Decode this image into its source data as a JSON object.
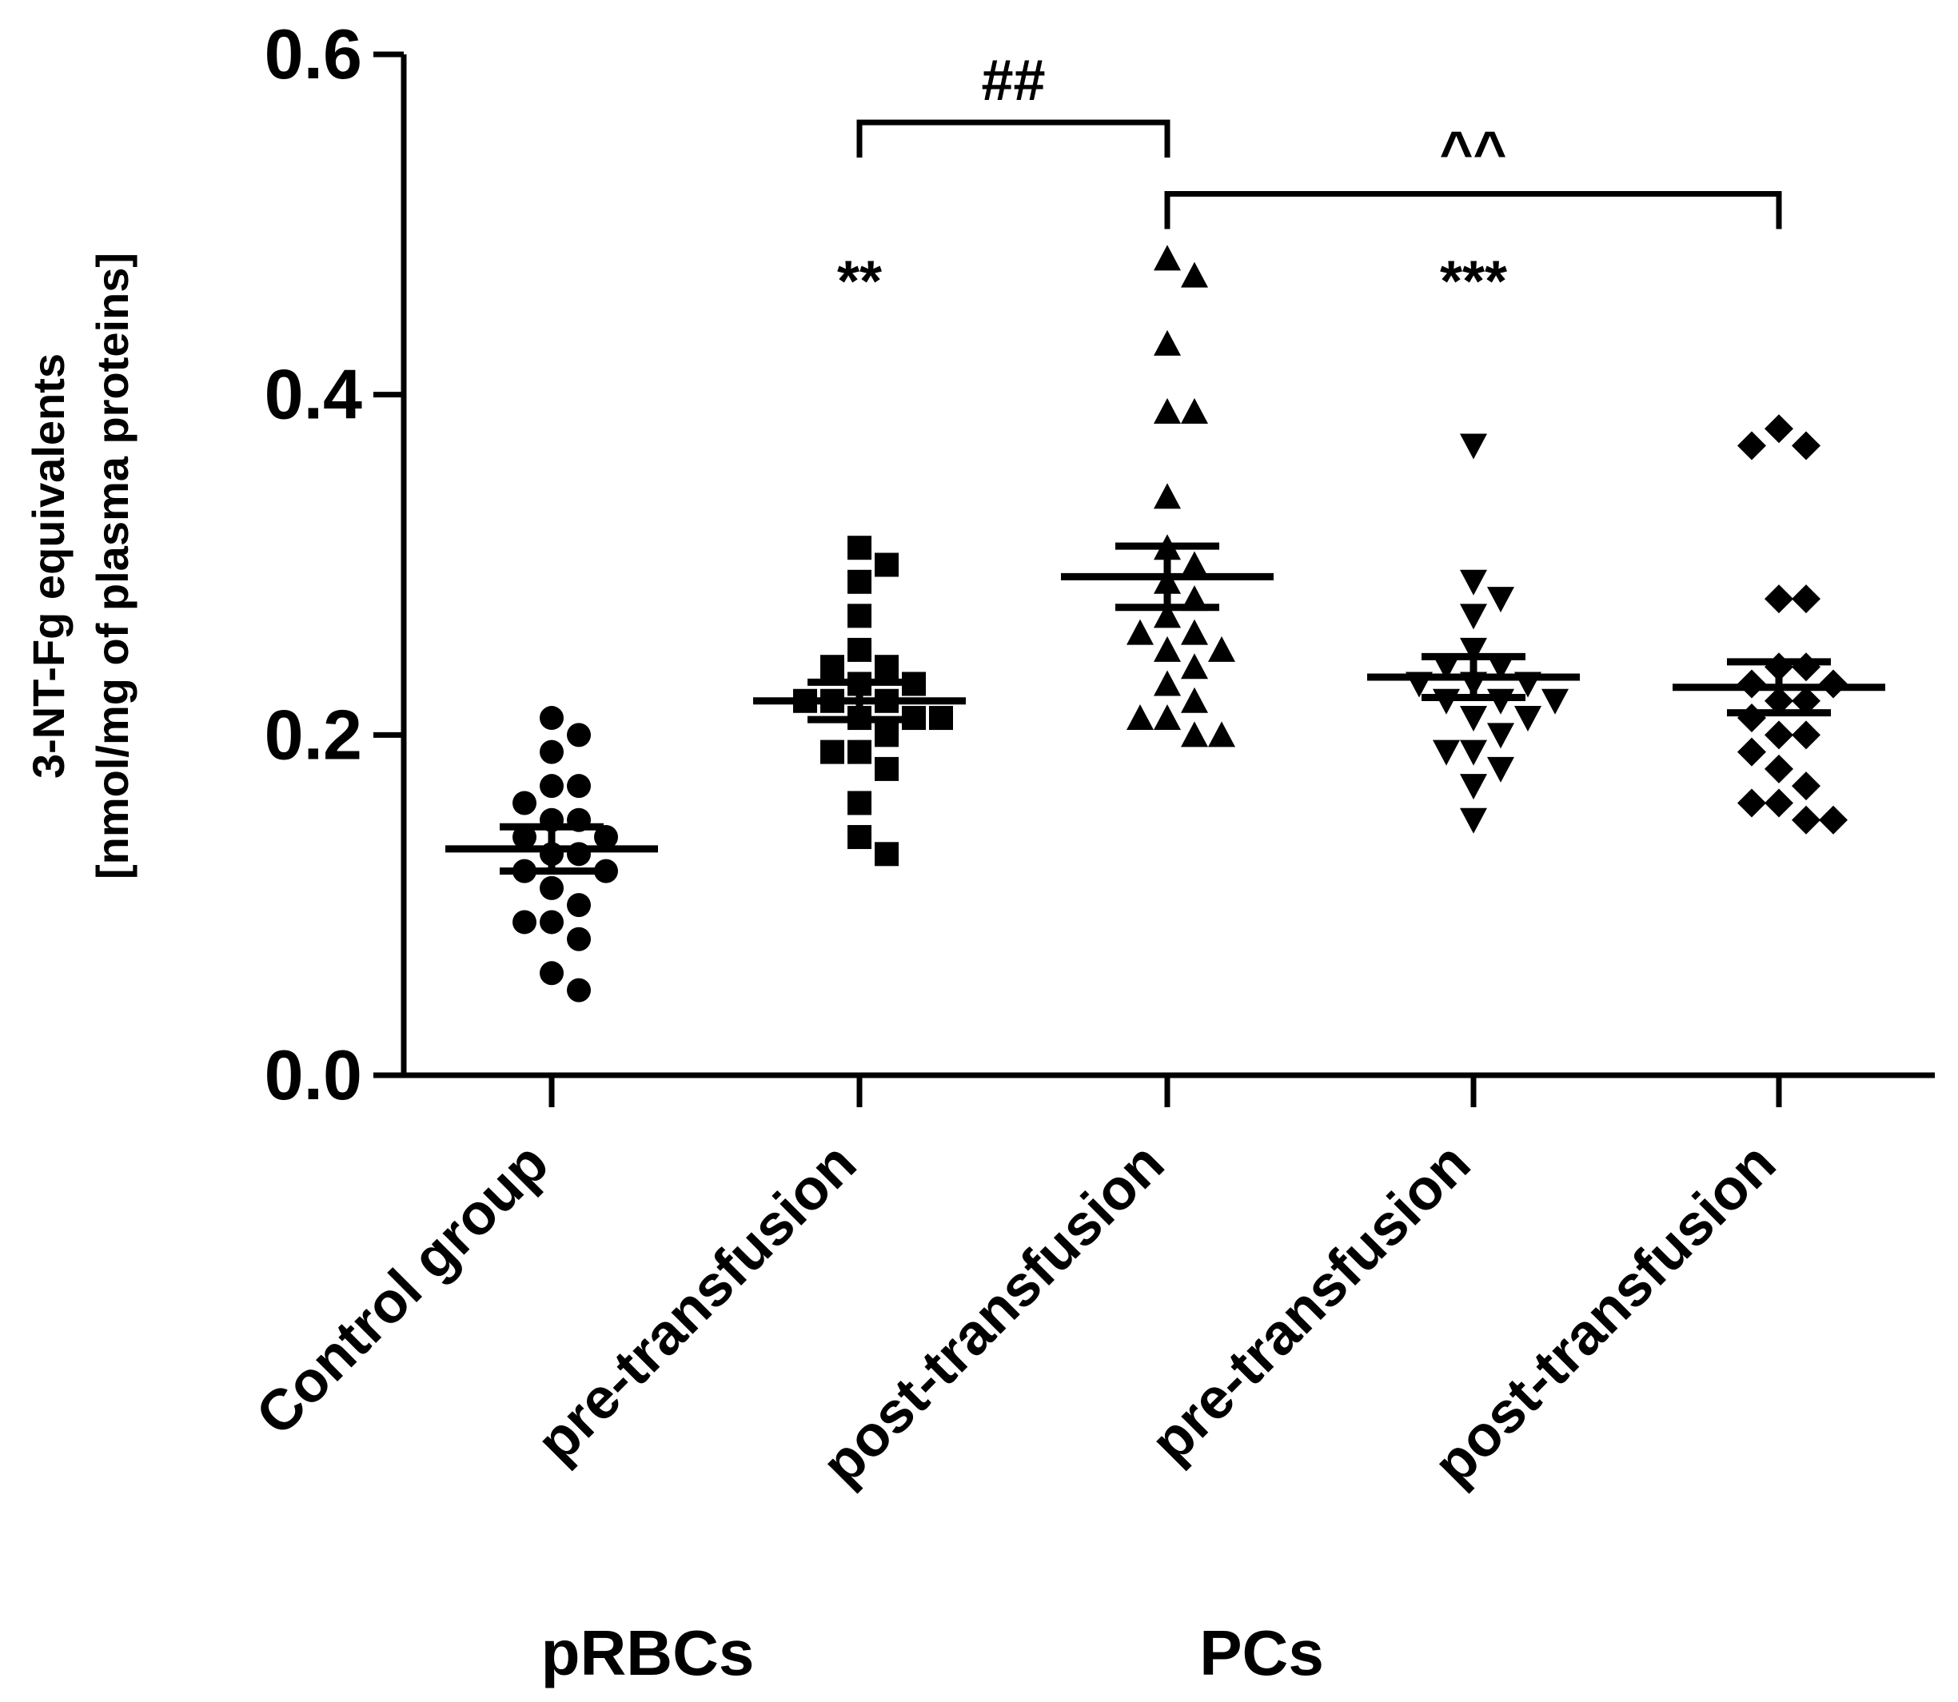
{
  "chart_data": {
    "type": "scatter",
    "title": "",
    "ylabel_line1": "3-NT-Fg equivalents",
    "ylabel_line2": "[nmol/mg of plasma proteins]",
    "xlabel": "",
    "ylim": [
      0.0,
      0.6
    ],
    "yticks": [
      0.0,
      0.2,
      0.4,
      0.6
    ],
    "ytick_labels": [
      "0.0",
      "0.2",
      "0.4",
      "0.6"
    ],
    "categories": [
      "Control group",
      "pre-transfusion",
      "post-transfusion",
      "pre-transfusion",
      "post-transfusion"
    ],
    "group_labels": [
      {
        "label": "pRBCs",
        "center_category": 1
      },
      {
        "label": "PCs",
        "center_category": 3
      }
    ],
    "series": [
      {
        "name": "Control group",
        "marker": "circle",
        "mean": 0.133,
        "sem": 0.013,
        "values": [
          0.21,
          0.2,
          0.19,
          0.17,
          0.17,
          0.16,
          0.15,
          0.15,
          0.14,
          0.14,
          0.13,
          0.13,
          0.12,
          0.12,
          0.11,
          0.1,
          0.09,
          0.09,
          0.08,
          0.06,
          0.05
        ]
      },
      {
        "name": "pRBCs pre-transfusion",
        "marker": "square",
        "mean": 0.22,
        "sem": 0.011,
        "values": [
          0.31,
          0.3,
          0.29,
          0.27,
          0.25,
          0.24,
          0.24,
          0.23,
          0.23,
          0.22,
          0.22,
          0.22,
          0.21,
          0.21,
          0.21,
          0.2,
          0.19,
          0.19,
          0.18,
          0.16,
          0.14,
          0.13
        ]
      },
      {
        "name": "pRBCs post-transfusion",
        "marker": "triangle-up",
        "mean": 0.293,
        "sem": 0.018,
        "values": [
          0.48,
          0.47,
          0.43,
          0.39,
          0.39,
          0.34,
          0.31,
          0.3,
          0.29,
          0.28,
          0.27,
          0.26,
          0.26,
          0.25,
          0.25,
          0.24,
          0.23,
          0.22,
          0.21,
          0.21,
          0.2,
          0.2
        ]
      },
      {
        "name": "PCs pre-transfusion",
        "marker": "triangle-down",
        "mean": 0.234,
        "sem": 0.012,
        "values": [
          0.37,
          0.29,
          0.28,
          0.27,
          0.25,
          0.24,
          0.24,
          0.23,
          0.23,
          0.23,
          0.22,
          0.22,
          0.22,
          0.21,
          0.21,
          0.2,
          0.19,
          0.19,
          0.18,
          0.17,
          0.15
        ]
      },
      {
        "name": "PCs post-transfusion",
        "marker": "diamond",
        "mean": 0.228,
        "sem": 0.015,
        "values": [
          0.38,
          0.37,
          0.37,
          0.28,
          0.28,
          0.24,
          0.24,
          0.23,
          0.23,
          0.22,
          0.22,
          0.21,
          0.2,
          0.2,
          0.19,
          0.18,
          0.17,
          0.16,
          0.16,
          0.15,
          0.15
        ]
      }
    ],
    "annotations": [
      {
        "text": "**",
        "category": 1,
        "y": 0.455
      },
      {
        "text": "***",
        "category": 3,
        "y": 0.455
      },
      {
        "text": "##",
        "bracket_from": 1,
        "bracket_to": 2,
        "y": 0.56
      },
      {
        "text": "^^",
        "bracket_from": 2,
        "bracket_to": 4,
        "y": 0.518
      }
    ]
  }
}
